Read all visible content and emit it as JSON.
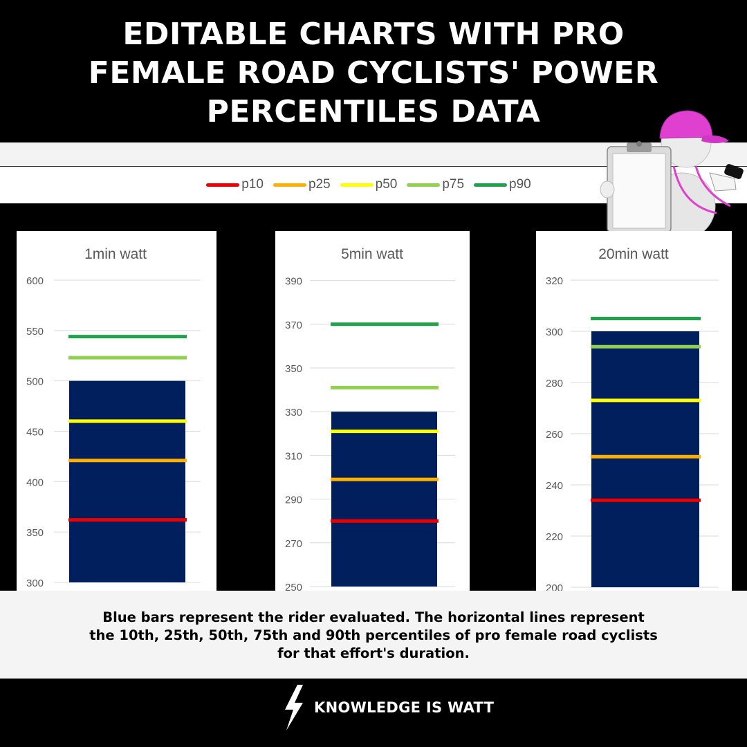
{
  "header": {
    "title_lines": [
      "EDITABLE CHARTS WITH PRO",
      "FEMALE ROAD CYCLISTS' POWER",
      "PERCENTILES DATA"
    ]
  },
  "legend": {
    "items": [
      {
        "label": "p10",
        "color": "#ee0000"
      },
      {
        "label": "p25",
        "color": "#ffb000"
      },
      {
        "label": "p50",
        "color": "#ffff00"
      },
      {
        "label": "p75",
        "color": "#92d050"
      },
      {
        "label": "p90",
        "color": "#1fa34a"
      }
    ]
  },
  "chart_data": [
    {
      "type": "bar",
      "title": "1min watt",
      "value": 500,
      "ylim": [
        300,
        600
      ],
      "yticks": [
        300,
        350,
        400,
        450,
        500,
        550,
        600
      ],
      "percentiles": {
        "p10": 362,
        "p25": 421,
        "p50": 460,
        "p75": 523,
        "p90": 544
      },
      "bar_color": "#001f5c",
      "grid": true
    },
    {
      "type": "bar",
      "title": "5min watt",
      "value": 330,
      "ylim": [
        250,
        400
      ],
      "yticks": [
        250,
        270,
        290,
        310,
        330,
        350,
        370,
        390
      ],
      "percentiles": {
        "p10": 280,
        "p25": 299,
        "p50": 321,
        "p75": 341,
        "p90": 370
      },
      "bar_color": "#001f5c",
      "grid": true
    },
    {
      "type": "bar",
      "title": "20min watt",
      "value": 300,
      "ylim": [
        200,
        320
      ],
      "yticks": [
        200,
        220,
        240,
        260,
        280,
        300,
        320
      ],
      "percentiles": {
        "p10": 234,
        "p25": 251,
        "p50": 273,
        "p75": 294,
        "p90": 305
      },
      "bar_color": "#001f5c",
      "grid": true
    }
  ],
  "caption": {
    "lines": [
      "Blue bars represent the rider evaluated. The horizontal lines represent",
      "the 10th, 25th, 50th, 75th and 90th percentiles of pro female road cyclists",
      "for that effort's duration."
    ]
  },
  "footer": {
    "brand": "KNOWLEDGE IS WATT",
    "icon": "lightning-bolt-icon"
  }
}
